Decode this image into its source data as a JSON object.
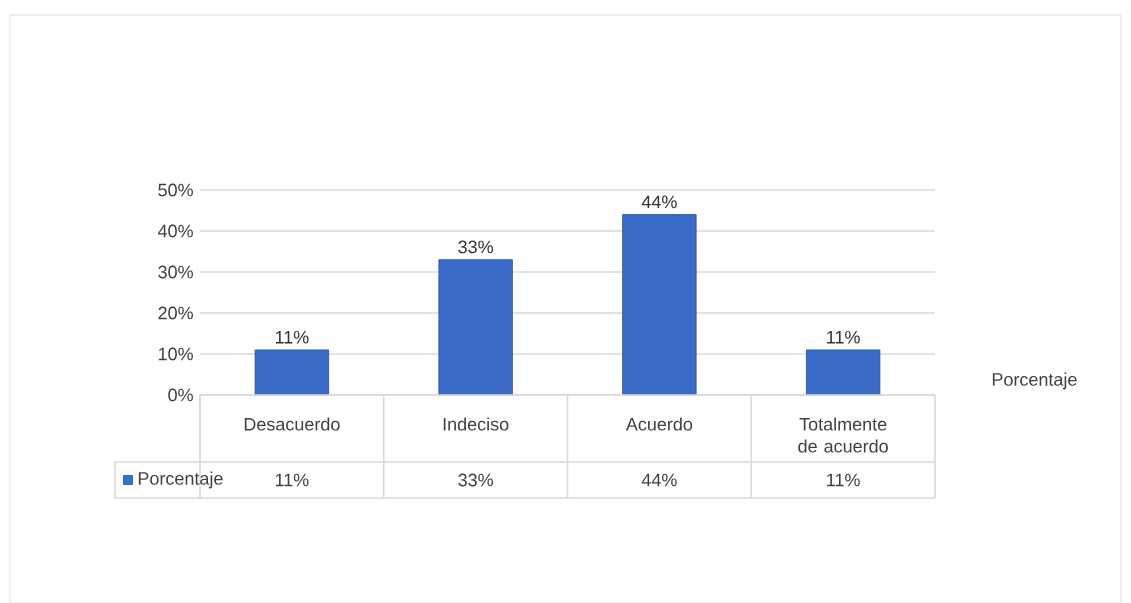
{
  "chart_data": {
    "type": "bar",
    "categories": [
      "Desacuerdo",
      "Indeciso",
      "Acuerdo",
      "Totalmente de acuerdo"
    ],
    "series": [
      {
        "name": "Porcentaje",
        "color": "#3a6bc9",
        "values": [
          11,
          33,
          44,
          11
        ],
        "value_labels": [
          "11%",
          "33%",
          "44%",
          "11%"
        ]
      }
    ],
    "ylim": [
      0,
      50
    ],
    "yticks": [
      {
        "value": 0,
        "label": "0%"
      },
      {
        "value": 10,
        "label": "10%"
      },
      {
        "value": 20,
        "label": "20%"
      },
      {
        "value": 30,
        "label": "30%"
      },
      {
        "value": 40,
        "label": "40%"
      },
      {
        "value": 50,
        "label": "50%"
      }
    ],
    "grid": "y",
    "legend": "bottom"
  }
}
